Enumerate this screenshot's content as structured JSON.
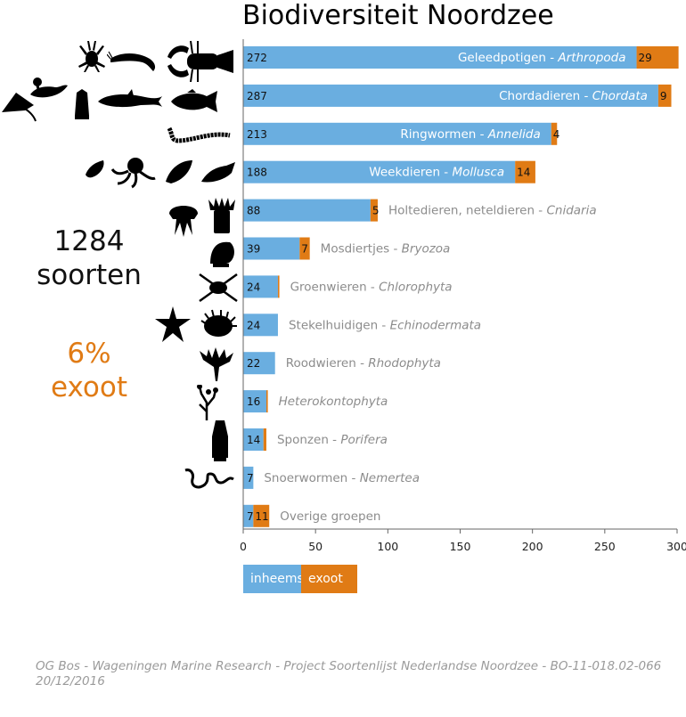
{
  "title": "Biodiversiteit Noordzee",
  "summary": {
    "total": "1284",
    "total_label": "soorten",
    "exotic_pct": "6%",
    "exotic_label": "exoot"
  },
  "footer": {
    "line1": "OG Bos - Wageningen Marine Research - Project Soortenlijst Nederlandse Noordzee - BO-11-018.02-066",
    "line2": "20/12/2016"
  },
  "colors": {
    "native": "#6aaee0",
    "exotic": "#e07b15",
    "label_gray": "#8c8c8c",
    "label_white": "#ffffff"
  },
  "legend": {
    "native": "inheems",
    "exotic": "exoot"
  },
  "chart_data": {
    "type": "bar",
    "orientation": "horizontal",
    "stacked": true,
    "categories": [
      {
        "name": "Geleedpotigen",
        "latin": "Arthropoda"
      },
      {
        "name": "Chordadieren",
        "latin": "Chordata"
      },
      {
        "name": "Ringwormen",
        "latin": "Annelida"
      },
      {
        "name": "Weekdieren",
        "latin": "Mollusca"
      },
      {
        "name": "Holtedieren, neteldieren",
        "latin": "Cnidaria"
      },
      {
        "name": "Mosdiertjes",
        "latin": "Bryozoa"
      },
      {
        "name": "Groenwieren",
        "latin": "Chlorophyta"
      },
      {
        "name": "Stekelhuidigen",
        "latin": "Echinodermata"
      },
      {
        "name": "Roodwieren",
        "latin": "Rhodophyta"
      },
      {
        "name": "",
        "latin": "Heterokontophyta"
      },
      {
        "name": "Sponzen",
        "latin": "Porifera"
      },
      {
        "name": "Snoerwormen",
        "latin": "Nemertea"
      },
      {
        "name": "Overige groepen",
        "latin": ""
      }
    ],
    "series": [
      {
        "name": "inheems",
        "values": [
          272,
          287,
          213,
          188,
          88,
          39,
          24,
          24,
          22,
          16,
          14,
          7,
          7
        ]
      },
      {
        "name": "exoot",
        "values": [
          29,
          9,
          4,
          14,
          5,
          7,
          1,
          0,
          0,
          1,
          2,
          0,
          11
        ]
      }
    ],
    "xlim": [
      0,
      300
    ],
    "xticks": [
      0,
      50,
      100,
      150,
      200,
      250,
      300
    ],
    "grid": false
  },
  "icons": [
    "crab-icon",
    "shrimp-icon",
    "lobster-icon",
    "ray-icon",
    "bird-icon",
    "sea-squirt-icon",
    "porpoise-icon",
    "fish-icon",
    "polychaete-worm-icon",
    "sea-slug-icon",
    "octopus-icon",
    "mussel-icon",
    "whelk-icon",
    "jellyfish-icon",
    "anemone-icon",
    "bryozoan-icon",
    "green-alga-icon",
    "starfish-icon",
    "sea-urchin-icon",
    "red-alga-icon",
    "brown-alga-icon",
    "sponge-icon",
    "ribbon-worm-icon"
  ]
}
